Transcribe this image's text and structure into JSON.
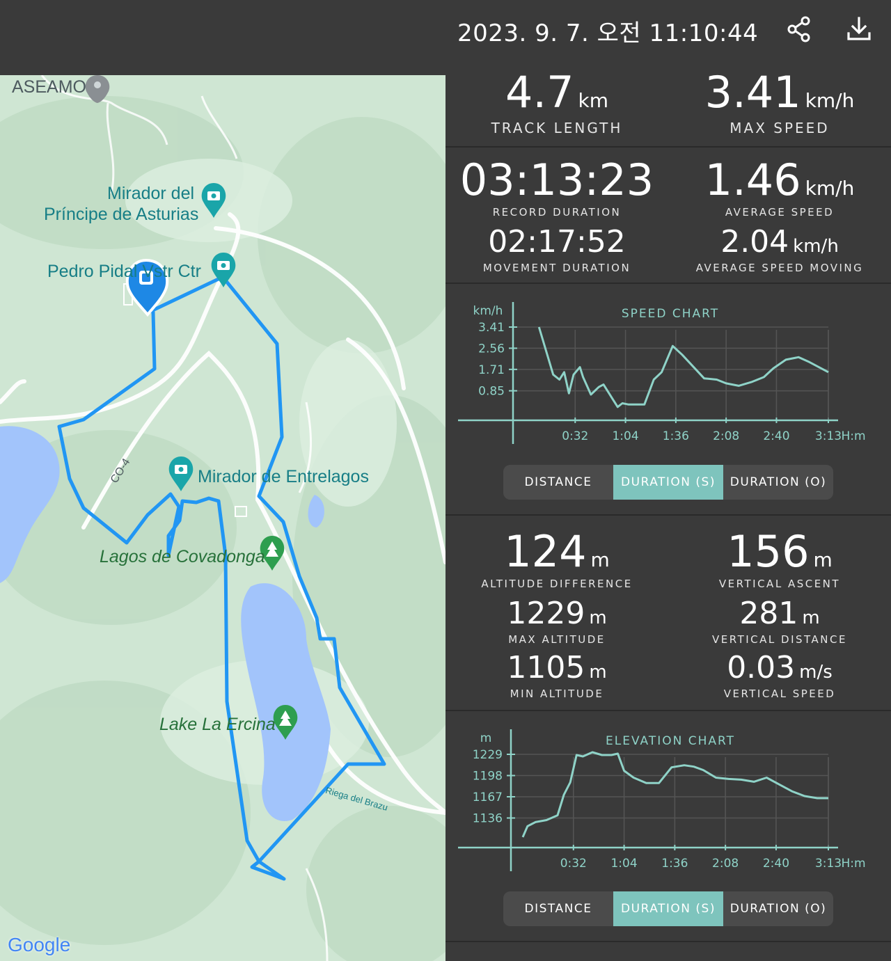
{
  "header": {
    "datetime": "2023. 9. 7. 오전 11:10:44",
    "share_icon": "share-icon",
    "download_icon": "download-icon"
  },
  "map": {
    "labels": {
      "aseamo": "ASEAMO",
      "mirador_principe_1": "Mirador del",
      "mirador_principe_2": "Príncipe de Asturias",
      "pedro_pidal": "Pedro Pidal Vstr Ctr",
      "co4": "CO-4",
      "mirador_entrelagos": "Mirador de Entrelagos",
      "lagos_covadonga": "Lagos de Covadonga",
      "lake_ercina": "Lake La Ercina",
      "riega": "Riega del Brazu"
    },
    "google_logo": "Google",
    "colors": {
      "route": "#2196f3",
      "water": "#a2c4fb",
      "land": "#cfe6d3"
    }
  },
  "stats": {
    "track_length": {
      "value": "4.7",
      "unit": "km",
      "label": "TRACK LENGTH"
    },
    "max_speed": {
      "value": "3.41",
      "unit": "km/h",
      "label": "MAX SPEED"
    },
    "record_duration": {
      "value": "03:13:23",
      "label": "RECORD DURATION"
    },
    "average_speed": {
      "value": "1.46",
      "unit": "km/h",
      "label": "AVERAGE SPEED"
    },
    "movement_duration": {
      "value": "02:17:52",
      "label": "MOVEMENT DURATION"
    },
    "average_speed_moving": {
      "value": "2.04",
      "unit": "km/h",
      "label": "AVERAGE SPEED MOVING"
    },
    "altitude_difference": {
      "value": "124",
      "unit": "m",
      "label": "ALTITUDE DIFFERENCE"
    },
    "vertical_ascent": {
      "value": "156",
      "unit": "m",
      "label": "VERTICAL ASCENT"
    },
    "max_altitude": {
      "value": "1229",
      "unit": "m",
      "label": "MAX ALTITUDE"
    },
    "vertical_distance": {
      "value": "281",
      "unit": "m",
      "label": "VERTICAL DISTANCE"
    },
    "min_altitude": {
      "value": "1105",
      "unit": "m",
      "label": "MIN ALTITUDE"
    },
    "vertical_speed": {
      "value": "0.03",
      "unit": "m/s",
      "label": "VERTICAL SPEED"
    }
  },
  "toggle": {
    "distance": "DISTANCE",
    "duration_s": "DURATION (S)",
    "duration_o": "DURATION (O)",
    "active": "duration_s"
  },
  "chart_data": [
    {
      "type": "line",
      "title": "SPEED CHART",
      "ylabel": "km/h",
      "xunit": "H:m",
      "xticks": [
        "0:32",
        "1:04",
        "1:36",
        "2:08",
        "2:40",
        "3:13"
      ],
      "yticks": [
        "0.85",
        "1.71",
        "2.56",
        "3.41"
      ],
      "xlim": [
        0,
        193
      ],
      "ylim": [
        0,
        3.41
      ],
      "color": "#8fd3c8",
      "x": [
        9,
        18,
        22,
        25,
        28,
        31,
        35,
        37,
        42,
        47,
        50,
        56,
        59,
        62,
        66,
        71,
        76,
        82,
        87,
        94,
        100,
        114,
        122,
        128,
        136,
        144,
        152,
        158,
        166,
        174,
        181,
        193
      ],
      "y": [
        3.41,
        1.5,
        1.3,
        1.6,
        0.75,
        1.5,
        1.8,
        1.4,
        0.7,
        1.0,
        1.1,
        0.5,
        0.2,
        0.35,
        0.3,
        0.3,
        0.3,
        1.3,
        1.6,
        2.65,
        2.3,
        1.35,
        1.3,
        1.15,
        1.05,
        1.2,
        1.4,
        1.75,
        2.1,
        2.2,
        2.0,
        1.6
      ]
    },
    {
      "type": "line",
      "title": "ELEVATION CHART",
      "ylabel": "m",
      "xunit": "H:m",
      "xticks": [
        "0:32",
        "1:04",
        "1:36",
        "2:08",
        "2:40",
        "3:13"
      ],
      "yticks": [
        "1136",
        "1167",
        "1198",
        "1229"
      ],
      "xlim": [
        0,
        193
      ],
      "ylim": [
        1105,
        1229
      ],
      "color": "#8fd3c8",
      "x": [
        0,
        3,
        8,
        15,
        22,
        26,
        30,
        34,
        38,
        44,
        50,
        56,
        60,
        64,
        70,
        78,
        86,
        94,
        102,
        108,
        114,
        122,
        130,
        138,
        146,
        154,
        162,
        170,
        178,
        186,
        193
      ],
      "y": [
        1108,
        1124,
        1130,
        1133,
        1140,
        1170,
        1188,
        1228,
        1226,
        1232,
        1228,
        1228,
        1230,
        1205,
        1195,
        1187,
        1187,
        1210,
        1213,
        1211,
        1206,
        1195,
        1193,
        1192,
        1189,
        1195,
        1185,
        1175,
        1168,
        1165,
        1165
      ]
    }
  ]
}
